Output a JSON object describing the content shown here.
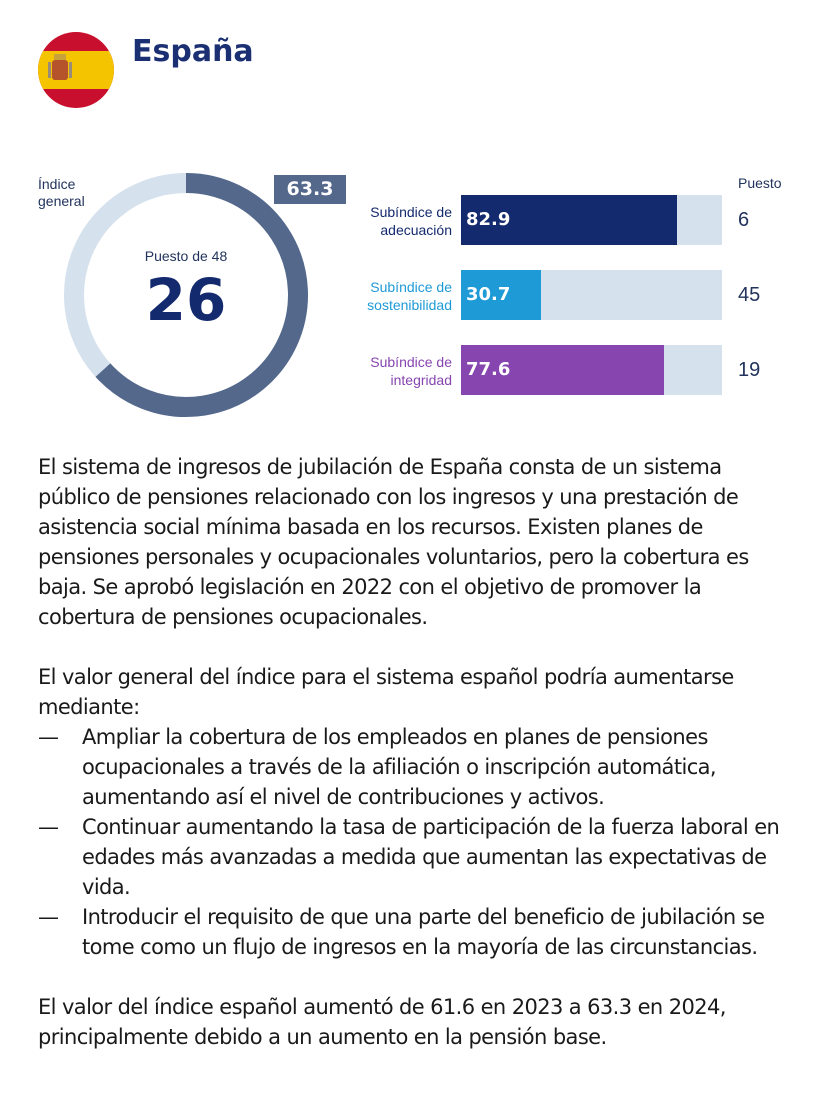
{
  "header": {
    "title": "España",
    "flag": "spain-flag"
  },
  "colors": {
    "title": "#1b2f73",
    "gauge_fill": "#54688c",
    "gauge_track": "#d5e1ed",
    "adecuacion": "#142a6e",
    "sostenibilidad": "#1e9ad6",
    "integridad": "#8745b0",
    "track": "#d5e1ed"
  },
  "chart_data": [
    {
      "type": "gauge",
      "label": "Índice general",
      "value": 63.3,
      "range": [
        0,
        100
      ],
      "rank_label": "Puesto de 48",
      "rank": "26"
    },
    {
      "type": "bar",
      "orientation": "horizontal",
      "xlim": [
        0,
        100
      ],
      "rank_header": "Puesto",
      "categories": [
        "Subíndice de adecuación",
        "Subíndice de sostenibilidad",
        "Subíndice de integridad"
      ],
      "values": [
        82.9,
        30.7,
        77.6
      ],
      "value_labels": [
        "82.9",
        "30.7",
        "77.6"
      ],
      "ranks": [
        "6",
        "45",
        "19"
      ]
    }
  ],
  "text": {
    "p1": "El sistema de ingresos de jubilación de España consta de un sistema público de pensiones relacionado con los ingresos y una prestación de asistencia social mínima basada en los recursos. Existen planes de pensiones personales y ocupacionales voluntarios, pero la cobertura es baja. Se aprobó legislación en 2022 con el objetivo de promover la cobertura de pensiones ocupacionales.",
    "p2": "El valor general del índice para el sistema español podría aumentarse mediante:",
    "dash": "—",
    "bullets": [
      "Ampliar la cobertura de los empleados en planes de pensiones ocupacionales a través de la afiliación o inscripción automática, aumentando así el nivel de contribuciones y activos.",
      "Continuar aumentando la tasa de participación de la fuerza laboral en edades más avanzadas a medida que aumentan las expectativas de vida.",
      "Introducir el requisito de que una parte del beneficio de jubilación se tome como un flujo de ingresos en la mayoría de las circunstancias."
    ],
    "p3": "El valor del índice español aumentó de 61.6 en 2023 a 63.3 en 2024, principalmente debido a un aumento en la pensión base."
  }
}
